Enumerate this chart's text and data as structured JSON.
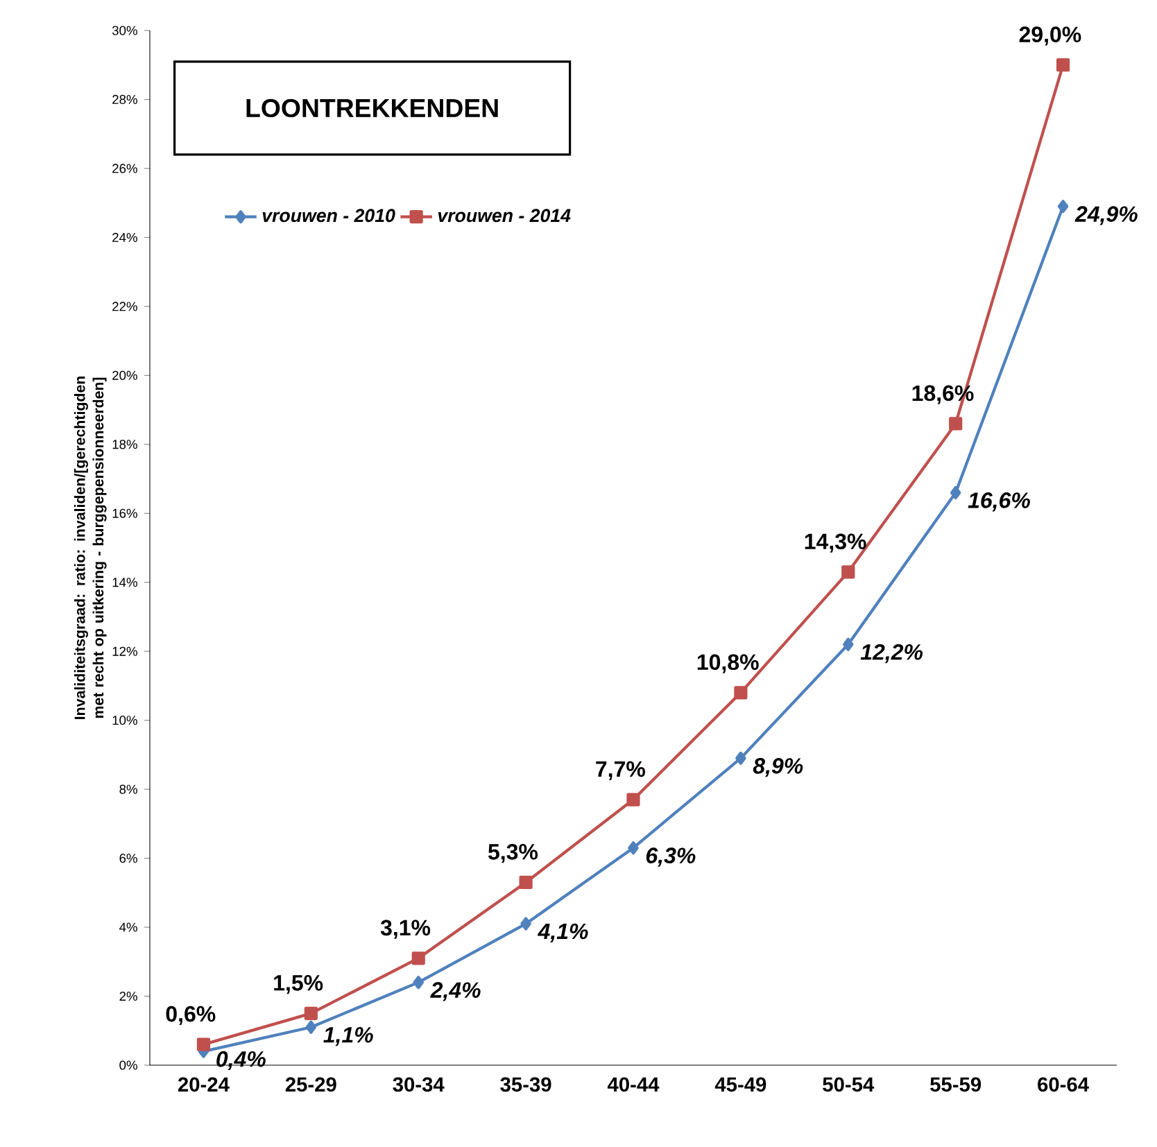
{
  "chart_data": {
    "type": "line",
    "title": "LOONTREKKENDEN",
    "ylabel": "Invaliditeitsgraad: ratio: invaliden/[gerechtigden met recht op uitkering - burggepensionneerden]",
    "categories": [
      "20-24",
      "25-29",
      "30-34",
      "35-39",
      "40-44",
      "45-49",
      "50-54",
      "55-59",
      "60-64"
    ],
    "series": [
      {
        "name": "vrouwen - 2010",
        "color": "#4f81bd",
        "marker": "diamond",
        "values": [
          0.4,
          1.1,
          2.4,
          4.1,
          6.3,
          8.9,
          12.2,
          16.6,
          24.9
        ],
        "value_labels": [
          "0,4%",
          "1,1%",
          "2,4%",
          "4,1%",
          "6,3%",
          "8,9%",
          "12,2%",
          "16,6%",
          "24,9%"
        ]
      },
      {
        "name": "vrouwen - 2014",
        "color": "#c0504d",
        "marker": "square",
        "values": [
          0.6,
          1.5,
          3.1,
          5.3,
          7.7,
          10.8,
          14.3,
          18.6,
          29.0
        ],
        "value_labels": [
          "0,6%",
          "1,5%",
          "3,1%",
          "5,3%",
          "7,7%",
          "10,8%",
          "14,3%",
          "18,6%",
          "29,0%"
        ]
      }
    ],
    "ylim": [
      0,
      30
    ],
    "yticks": [
      {
        "value": 0,
        "label": "0%"
      },
      {
        "value": 2,
        "label": "2%"
      },
      {
        "value": 4,
        "label": "4%"
      },
      {
        "value": 6,
        "label": "6%"
      },
      {
        "value": 8,
        "label": "8%"
      },
      {
        "value": 10,
        "label": "10%"
      },
      {
        "value": 12,
        "label": "12%"
      },
      {
        "value": 14,
        "label": "14%"
      },
      {
        "value": 16,
        "label": "16%"
      },
      {
        "value": 18,
        "label": "18%"
      },
      {
        "value": 20,
        "label": "20%"
      },
      {
        "value": 22,
        "label": "22%"
      },
      {
        "value": 24,
        "label": "24%"
      },
      {
        "value": 26,
        "label": "26%"
      },
      {
        "value": 28,
        "label": "28%"
      },
      {
        "value": 30,
        "label": "30%"
      }
    ],
    "legend": "top left"
  }
}
